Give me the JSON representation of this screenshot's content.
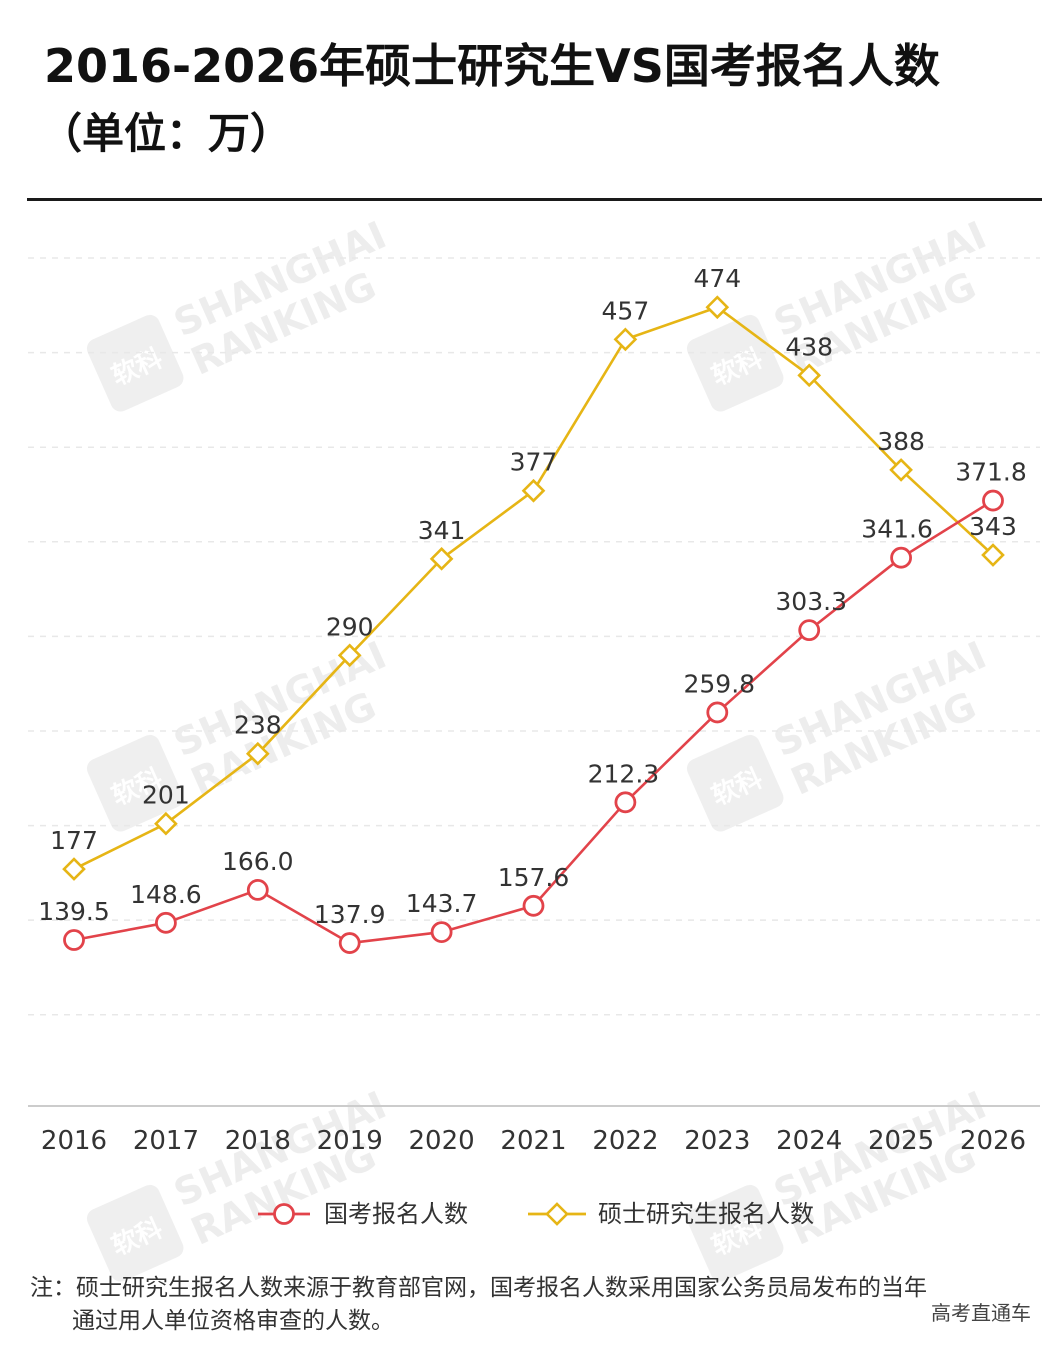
{
  "header": {
    "title": "2016-2026年硕士研究生VS国考报名人数",
    "subtitle": "（单位：万）"
  },
  "watermark": {
    "line1": "SHANGHAI",
    "line2": "RANKING",
    "logo_text": "软科"
  },
  "colors": {
    "civil": "#e2434a",
    "grad": "#e6b515",
    "grid": "#e8e8e8",
    "axis": "#cccccc"
  },
  "chart_data": {
    "type": "line",
    "categories": [
      "2016",
      "2017",
      "2018",
      "2019",
      "2020",
      "2021",
      "2022",
      "2023",
      "2024",
      "2025",
      "2026"
    ],
    "series": [
      {
        "name": "国考报名人数",
        "marker": "circle",
        "values": [
          139.5,
          148.6,
          166.0,
          137.9,
          143.7,
          157.6,
          212.3,
          259.8,
          303.3,
          341.6,
          371.8
        ],
        "labels": [
          "139.5",
          "148.6",
          "166.0",
          "137.9",
          "143.7",
          "157.6",
          "212.3",
          "259.8",
          "303.3",
          "341.6",
          "371.8"
        ]
      },
      {
        "name": "硕士研究生报名人数",
        "marker": "diamond",
        "values": [
          177,
          201,
          238,
          290,
          341,
          377,
          457,
          474,
          438,
          388,
          343
        ],
        "labels": [
          "177",
          "201",
          "238",
          "290",
          "341",
          "377",
          "457",
          "474",
          "438",
          "388",
          "343"
        ]
      }
    ],
    "grid": true,
    "legend_position": "bottom"
  },
  "footer": {
    "note_line1": "注：硕士研究生报名人数来源于教育部官网，国考报名人数采用国家公务员局发布的当年",
    "note_line2": "通过用人单位资格审查的人数。",
    "credit": "高考直通车"
  }
}
